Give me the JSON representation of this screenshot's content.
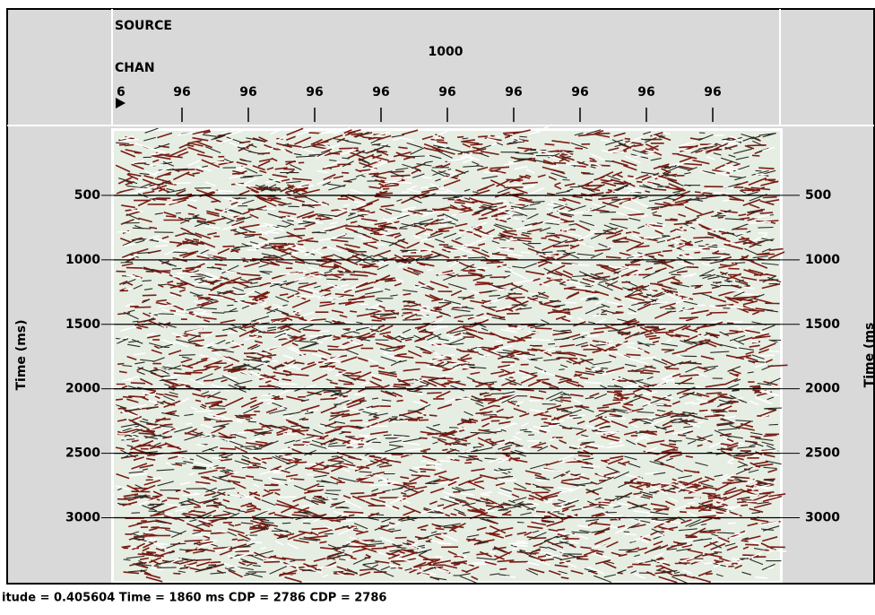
{
  "header": {
    "source_label": "SOURCE",
    "source_value": "1000",
    "chan_label": "CHAN",
    "channels": [
      "6",
      "96",
      "96",
      "96",
      "96",
      "96",
      "96",
      "96",
      "96",
      "96"
    ]
  },
  "axis": {
    "left_label": "Time (ms)",
    "right_label": "Time (ms",
    "ylim": [
      0,
      3490
    ],
    "yticks": [
      500,
      1000,
      1500,
      2000,
      2500,
      3000
    ],
    "grid": true
  },
  "status": "itude = 0.405604  Time = 1860 ms  CDP = 2786  CDP = 2786"
}
